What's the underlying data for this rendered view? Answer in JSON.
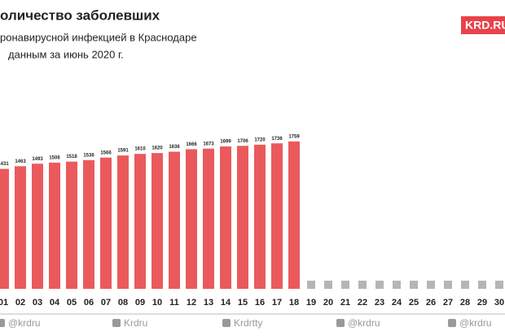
{
  "chart_data": {
    "type": "bar",
    "title": "оличество заболевших",
    "subtitle": [
      "ронавирусной инфекцией в Краснодаре",
      "данным за июнь 2020 г."
    ],
    "logo": "KRD.RU",
    "footer": [
      "@krdru",
      "Krdru",
      "Krdrtty",
      "@krdru",
      "@krdru"
    ],
    "categories": [
      "01",
      "02",
      "03",
      "04",
      "05",
      "06",
      "07",
      "08",
      "09",
      "10",
      "11",
      "12",
      "13",
      "14",
      "15",
      "16",
      "17",
      "18",
      "19",
      "20",
      "21",
      "22",
      "23",
      "24",
      "25",
      "26",
      "27",
      "28",
      "29",
      "30"
    ],
    "values": [
      1431,
      1463,
      1493,
      1506,
      1518,
      1536,
      1566,
      1591,
      1610,
      1620,
      1636,
      1666,
      1673,
      1699,
      1706,
      1720,
      1736,
      1759,
      null,
      null,
      null,
      null,
      null,
      null,
      null,
      null,
      null,
      null,
      null,
      null
    ],
    "color": "#ea5a5c",
    "ylim": [
      0,
      3000
    ]
  }
}
